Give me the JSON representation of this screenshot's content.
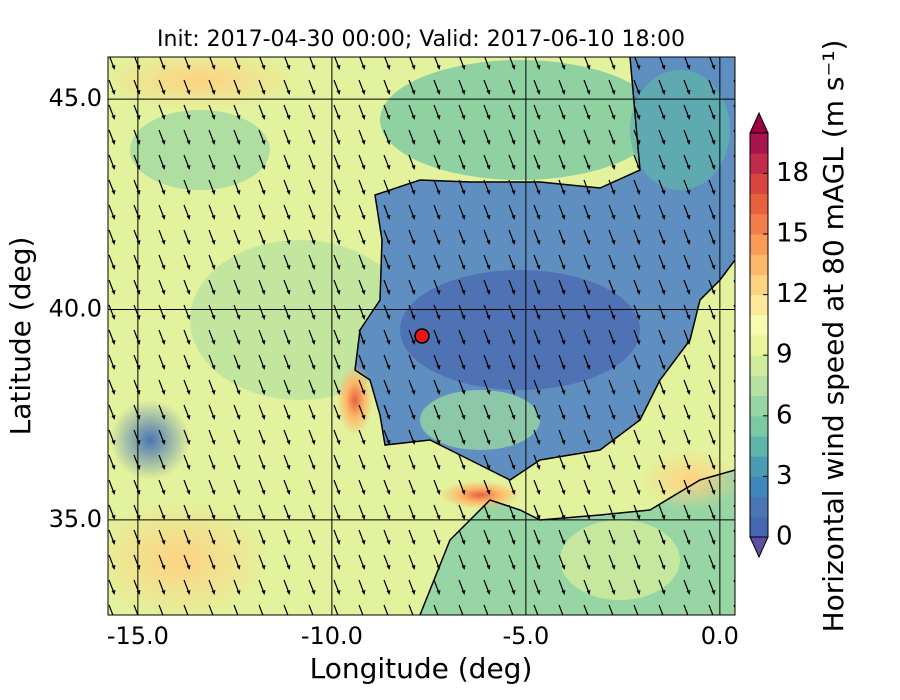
{
  "chart_data": {
    "type": "map",
    "title": "Init: 2017-04-30 00:00; Valid: 2017-06-10 18:00",
    "xlabel": "Longitude (deg)",
    "ylabel": "Latitude (deg)",
    "xlim": [
      -15.77,
      0.39
    ],
    "xticks": [
      {
        "value": -15,
        "label": "-15.0"
      },
      {
        "value": -10,
        "label": "-10.0"
      },
      {
        "value": -5,
        "label": "-5.0"
      },
      {
        "value": 0,
        "label": "0.0"
      }
    ],
    "ylim": [
      32.74,
      46.0
    ],
    "yticks": [
      {
        "value": 35,
        "label": "35.0"
      },
      {
        "value": 40,
        "label": "40.0"
      },
      {
        "value": 45,
        "label": "45.0"
      }
    ],
    "grid": true,
    "colorbar": {
      "label": "Horizontal wind speed at 80 mAGL (m s⁻¹)",
      "lim": [
        0,
        20
      ],
      "ticks": [
        0,
        3,
        6,
        9,
        12,
        15,
        18
      ],
      "colors": [
        "#4567b0",
        "#4a76b5",
        "#3f86ba",
        "#4b9bb5",
        "#5fb5aa",
        "#7ac8a4",
        "#98d5a4",
        "#b5e1a1",
        "#d1ec9c",
        "#e8f59b",
        "#f6fbb2",
        "#fee89a",
        "#fed283",
        "#fdb869",
        "#fa9b58",
        "#f47d4c",
        "#e8613f",
        "#d8473f",
        "#c02c4a",
        "#a8154d"
      ],
      "under_color": "#5e4fa2",
      "over_color": "#9e0142"
    }
  }
}
